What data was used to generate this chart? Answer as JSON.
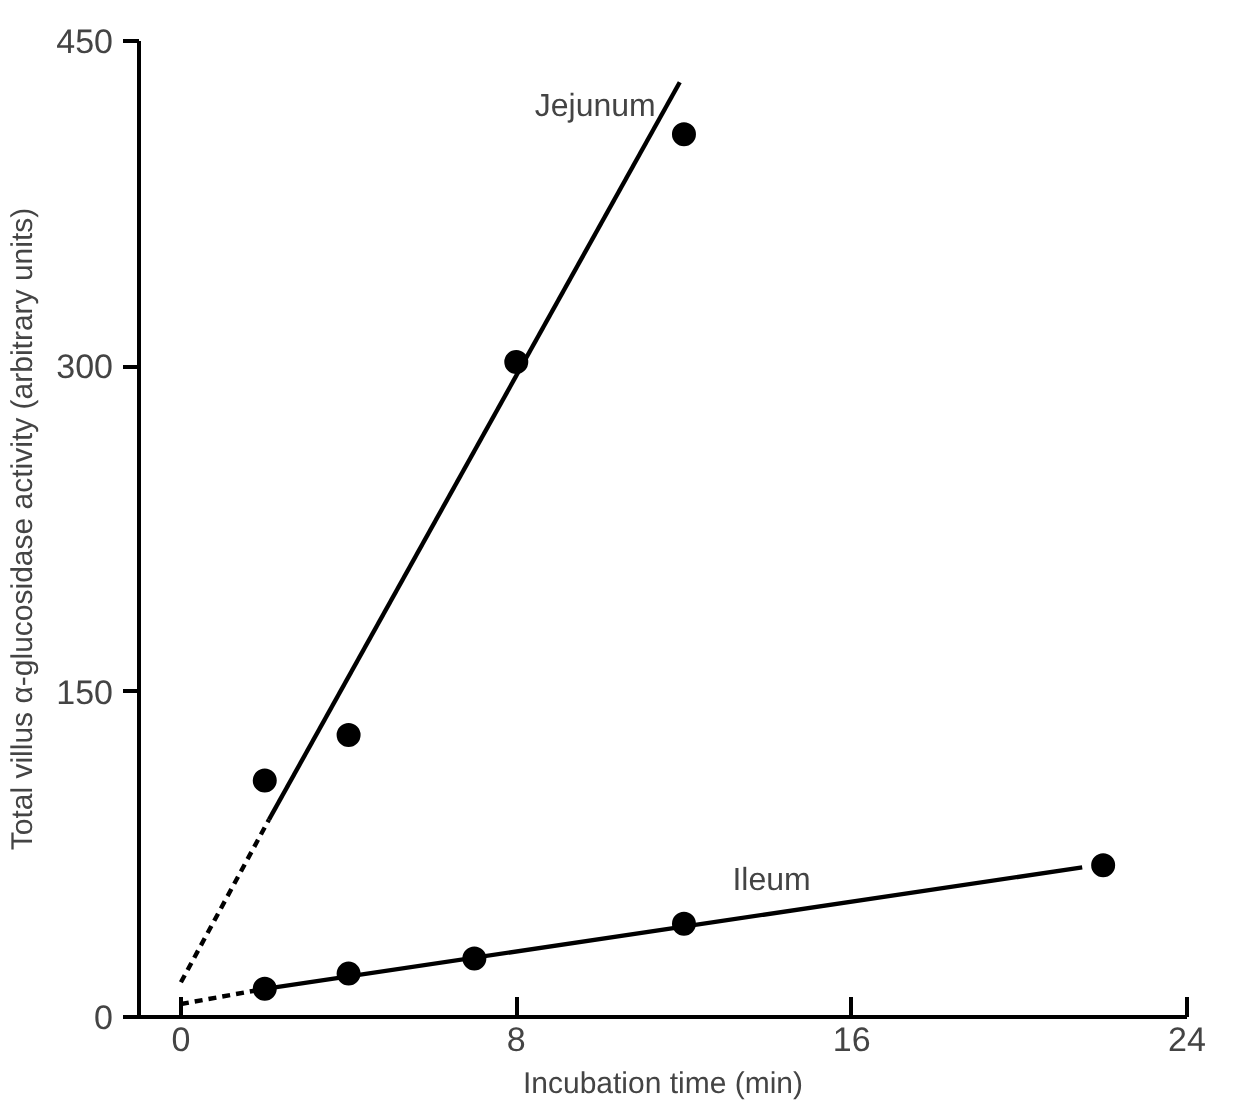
{
  "chart_data": {
    "type": "scatter",
    "xlabel": "Incubation time (min)",
    "ylabel": "Total villus α-glucosidase activity (arbitrary units)",
    "xlim": [
      -1,
      24
    ],
    "ylim": [
      0,
      450
    ],
    "xticks": [
      0,
      8,
      16,
      24
    ],
    "yticks": [
      0,
      150,
      300,
      450
    ],
    "grid": false,
    "legend": false,
    "series": [
      {
        "color": "#000000",
        "marker": "circle",
        "x": [
          2,
          4,
          8,
          12
        ],
        "values": [
          109,
          130,
          302,
          407
        ]
      },
      {
        "color": "#000000",
        "marker": "circle",
        "x": [
          2,
          4,
          7,
          12,
          22
        ],
        "values": [
          13,
          20,
          27,
          43,
          70
        ]
      },
      {
        "type": "line",
        "name": "Jejunum",
        "color": "#000000",
        "line_style": "solid",
        "marker": "none",
        "x": [
          2.1,
          11.9
        ],
        "values": [
          91,
          431
        ]
      },
      {
        "type": "line",
        "color": "#000000",
        "line_style": "dashed",
        "marker": "none",
        "x": [
          0,
          2.1
        ],
        "values": [
          16,
          91
        ]
      },
      {
        "type": "line",
        "name": "Ileum",
        "color": "#000000",
        "line_style": "solid",
        "marker": "none",
        "x": [
          2,
          21.5
        ],
        "values": [
          13,
          69
        ]
      },
      {
        "type": "line",
        "color": "#000000",
        "line_style": "dashed",
        "marker": "none",
        "x": [
          0,
          2
        ],
        "values": [
          6,
          13
        ]
      }
    ]
  }
}
